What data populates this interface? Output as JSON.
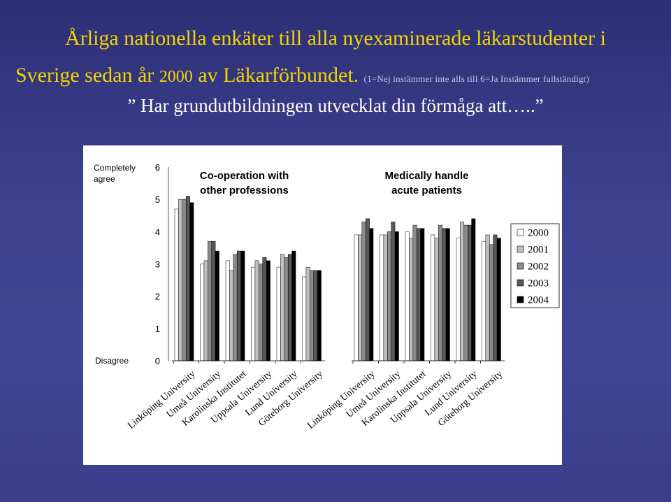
{
  "slide": {
    "title_line1": "Årliga nationella enkäter till alla nyexaminerade läkarstudenter i",
    "title_line2_a": "Sverige sedan år ",
    "title_line2_year": "2000",
    "title_line2_b": " av Läkarförbundet.",
    "scale_note": "(1=Nej instämmer inte alls till 6=Ja Instämmer fullständigt)",
    "question": "” Har grundutbildningen utvecklat din förmåga att…..”"
  },
  "colors": {
    "background": "#3d4190",
    "title": "#f2d400",
    "question": "#ffffff",
    "series": [
      "#ffffff",
      "#c0c0c0",
      "#8c8c8c",
      "#595959",
      "#000000"
    ]
  },
  "chart_data": {
    "type": "bar",
    "y_top_label": "Completely agree",
    "y_bottom_label": "Disagree",
    "ylim": [
      0,
      6
    ],
    "yticks": [
      "0",
      "1",
      "2",
      "3",
      "4",
      "5",
      "6"
    ],
    "grid": false,
    "legend_position": "right",
    "series_names": [
      "2000",
      "2001",
      "2002",
      "2003",
      "2004"
    ],
    "groups": [
      {
        "title_line1": "Co-operation with",
        "title_line2": "other professions",
        "categories": [
          "Linköping University",
          "Umeå University",
          "Karolinska Institutet",
          "Uppsala University",
          "Lund University",
          "Göteborg University"
        ],
        "values": [
          [
            4.7,
            5.0,
            5.0,
            5.1,
            4.9
          ],
          [
            3.0,
            3.1,
            3.7,
            3.7,
            3.4
          ],
          [
            3.1,
            2.8,
            3.3,
            3.4,
            3.4
          ],
          [
            2.9,
            3.1,
            3.0,
            3.2,
            3.1
          ],
          [
            2.9,
            3.3,
            3.2,
            3.3,
            3.4
          ],
          [
            2.6,
            2.9,
            2.8,
            2.8,
            2.8
          ]
        ]
      },
      {
        "title_line1": "Medically handle",
        "title_line2": "acute patients",
        "categories": [
          "Linköping University",
          "Umeå University",
          "Karolinska Institutet",
          "Uppsala University",
          "Lund University",
          "Göteborg University"
        ],
        "values": [
          [
            3.9,
            3.9,
            4.3,
            4.4,
            4.1
          ],
          [
            3.9,
            3.9,
            4.0,
            4.3,
            4.0
          ],
          [
            4.0,
            3.8,
            4.2,
            4.1,
            4.1
          ],
          [
            3.9,
            3.8,
            4.2,
            4.1,
            4.1
          ],
          [
            3.8,
            4.3,
            4.2,
            4.2,
            4.4
          ],
          [
            3.7,
            3.9,
            3.6,
            3.9,
            3.8
          ]
        ]
      }
    ]
  }
}
